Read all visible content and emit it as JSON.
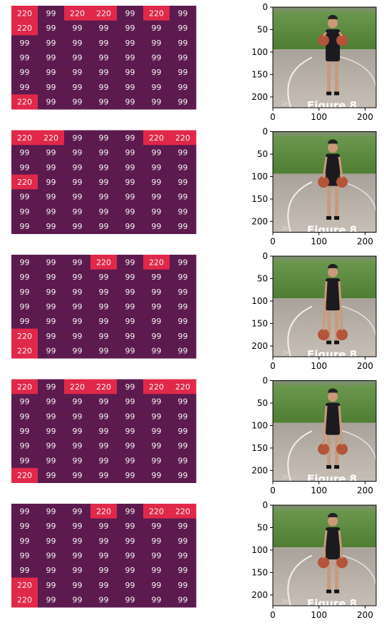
{
  "chart_data": [
    {
      "type": "heatmap",
      "row": 1,
      "values": [
        [
          220,
          99,
          220,
          220,
          99,
          220,
          99
        ],
        [
          220,
          99,
          99,
          99,
          99,
          99,
          99
        ],
        [
          99,
          99,
          99,
          99,
          99,
          99,
          99
        ],
        [
          99,
          99,
          99,
          99,
          99,
          99,
          99
        ],
        [
          99,
          99,
          99,
          99,
          99,
          99,
          99
        ],
        [
          99,
          99,
          99,
          99,
          99,
          99,
          99
        ],
        [
          220,
          99,
          99,
          99,
          99,
          99,
          99
        ]
      ]
    },
    {
      "type": "heatmap",
      "row": 2,
      "values": [
        [
          220,
          220,
          99,
          99,
          99,
          220,
          220
        ],
        [
          99,
          99,
          99,
          99,
          99,
          99,
          99
        ],
        [
          99,
          99,
          99,
          99,
          99,
          99,
          99
        ],
        [
          220,
          99,
          99,
          99,
          99,
          99,
          99
        ],
        [
          99,
          99,
          99,
          99,
          99,
          99,
          99
        ],
        [
          99,
          99,
          99,
          99,
          99,
          99,
          99
        ],
        [
          99,
          99,
          99,
          99,
          99,
          99,
          99
        ]
      ]
    },
    {
      "type": "heatmap",
      "row": 3,
      "values": [
        [
          99,
          99,
          99,
          220,
          99,
          220,
          99
        ],
        [
          99,
          99,
          99,
          99,
          99,
          99,
          99
        ],
        [
          99,
          99,
          99,
          99,
          99,
          99,
          99
        ],
        [
          99,
          99,
          99,
          99,
          99,
          99,
          99
        ],
        [
          99,
          99,
          99,
          99,
          99,
          99,
          99
        ],
        [
          220,
          99,
          99,
          99,
          99,
          99,
          99
        ],
        [
          220,
          99,
          99,
          99,
          99,
          99,
          99
        ]
      ]
    },
    {
      "type": "heatmap",
      "row": 4,
      "values": [
        [
          220,
          99,
          220,
          220,
          99,
          220,
          220
        ],
        [
          99,
          99,
          99,
          99,
          99,
          99,
          99
        ],
        [
          99,
          99,
          99,
          99,
          99,
          99,
          99
        ],
        [
          99,
          99,
          99,
          99,
          99,
          99,
          99
        ],
        [
          99,
          99,
          99,
          99,
          99,
          99,
          99
        ],
        [
          99,
          99,
          99,
          99,
          99,
          99,
          99
        ],
        [
          220,
          99,
          99,
          99,
          99,
          99,
          99
        ]
      ]
    },
    {
      "type": "heatmap",
      "row": 5,
      "values": [
        [
          99,
          99,
          99,
          220,
          99,
          220,
          220
        ],
        [
          99,
          99,
          99,
          99,
          99,
          99,
          99
        ],
        [
          99,
          99,
          99,
          99,
          99,
          99,
          99
        ],
        [
          99,
          99,
          99,
          99,
          99,
          99,
          99
        ],
        [
          99,
          99,
          99,
          99,
          99,
          99,
          99
        ],
        [
          220,
          99,
          99,
          99,
          99,
          99,
          99
        ],
        [
          220,
          99,
          99,
          99,
          99,
          99,
          99
        ]
      ]
    }
  ],
  "image_panels": {
    "caption": "Figure 8",
    "xlim": [
      0,
      224
    ],
    "ylim": [
      224,
      0
    ],
    "x_ticks": [
      0,
      100,
      200
    ],
    "y_ticks": [
      0,
      50,
      100,
      150,
      200
    ],
    "frames": [
      {
        "ball_rows": 0.33,
        "player_pose": "holding-high"
      },
      {
        "ball_rows": 0.5,
        "player_pose": "holding-mid"
      },
      {
        "ball_rows": 0.78,
        "player_pose": "dribbling-low"
      },
      {
        "ball_rows": 0.68,
        "player_pose": "dribbling"
      },
      {
        "ball_rows": 0.57,
        "player_pose": "holding-mid"
      }
    ]
  },
  "colors": {
    "low": "#5c1a4e",
    "high": "#e0284a",
    "cell_text": "#f2f2f2",
    "grass": "#5a8a3c",
    "court": "#b9b0a6",
    "jersey": "#1b1b1f",
    "ball": "#b4543a",
    "skin": "#c99a7a"
  }
}
